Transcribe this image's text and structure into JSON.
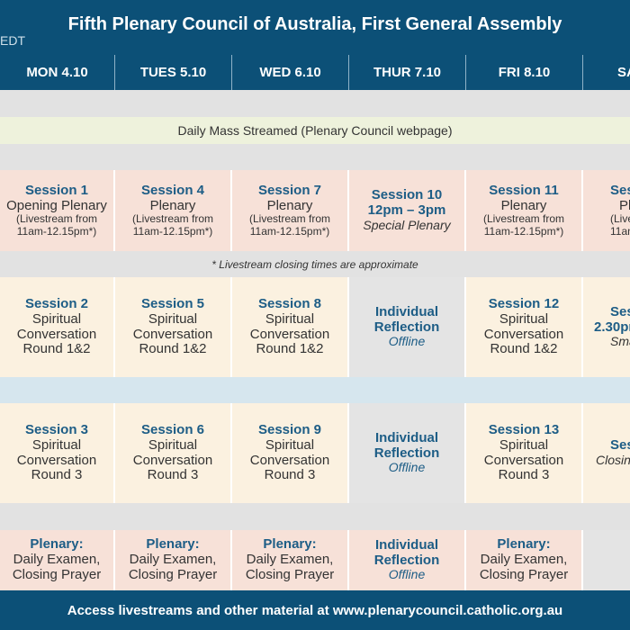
{
  "header": {
    "timezone": "EDT",
    "title": "Fifth Plenary Council of Australia, First General Assembly"
  },
  "days": [
    "MON 4.10",
    "TUES 5.10",
    "WED 6.10",
    "THUR 7.10",
    "FRI 8.10",
    "SA"
  ],
  "mass": "Daily Mass Streamed (Plenary Council webpage)",
  "note": "* Livestream closing times are approximate",
  "row1": [
    {
      "head": "Session 1",
      "lines": [
        "Opening Plenary"
      ],
      "small": [
        "(Livestream from",
        "11am-12.15pm*)"
      ]
    },
    {
      "head": "Session 4",
      "lines": [
        "Plenary"
      ],
      "small": [
        "(Livestream from",
        "11am-12.15pm*)"
      ]
    },
    {
      "head": "Session 7",
      "lines": [
        "Plenary"
      ],
      "small": [
        "(Livestream from",
        "11am-12.15pm*)"
      ]
    },
    {
      "head": "Session 10",
      "head2": "12pm – 3pm",
      "ital": "Special Plenary"
    },
    {
      "head": "Session 11",
      "lines": [
        "Plenary"
      ],
      "small": [
        "(Livestream from",
        "11am-12.15pm*)"
      ]
    },
    {
      "head": "Ses",
      "lines": [
        "Pl"
      ],
      "small": [
        "(Livest",
        "11am-"
      ]
    }
  ],
  "row2": [
    {
      "head": "Session 2",
      "lines": [
        "Spiritual",
        "Conversation",
        "Round 1&2"
      ]
    },
    {
      "head": "Session 5",
      "lines": [
        "Spiritual",
        "Conversation",
        "Round 1&2"
      ]
    },
    {
      "head": "Session 8",
      "lines": [
        "Spiritual",
        "Conversation",
        "Round 1&2"
      ]
    },
    {
      "head": "Individual",
      "head2": "Reflection",
      "offline": "Offline"
    },
    {
      "head": "Session 12",
      "lines": [
        "Spiritual",
        "Conversation",
        "Round 1&2"
      ]
    },
    {
      "head": "Ses",
      "head2": "2.30pm",
      "ital": "Sma"
    }
  ],
  "row3": [
    {
      "head": "Session 3",
      "lines": [
        "Spiritual",
        "Conversation",
        "Round 3"
      ]
    },
    {
      "head": "Session 6",
      "lines": [
        "Spiritual",
        "Conversation",
        "Round 3"
      ]
    },
    {
      "head": "Session 9",
      "lines": [
        "Spiritual",
        "Conversation",
        "Round 3"
      ]
    },
    {
      "head": "Individual",
      "head2": "Reflection",
      "offline": "Offline"
    },
    {
      "head": "Session 13",
      "lines": [
        "Spiritual",
        "Conversation",
        "Round 3"
      ]
    },
    {
      "head": "Ses",
      "ital": "Closin"
    }
  ],
  "row4": [
    {
      "head": "Plenary:",
      "lines": [
        "Daily Examen,",
        "Closing Prayer"
      ]
    },
    {
      "head": "Plenary:",
      "lines": [
        "Daily Examen,",
        "Closing Prayer"
      ]
    },
    {
      "head": "Plenary:",
      "lines": [
        "Daily Examen,",
        "Closing Prayer"
      ]
    },
    {
      "head": "Individual",
      "head2": "Reflection",
      "offline": "Offline"
    },
    {
      "head": "Plenary:",
      "lines": [
        "Daily Examen,",
        "Closing Prayer"
      ]
    },
    {}
  ],
  "footer": "Access livestreams and other material at www.plenarycouncil.catholic.org.au"
}
